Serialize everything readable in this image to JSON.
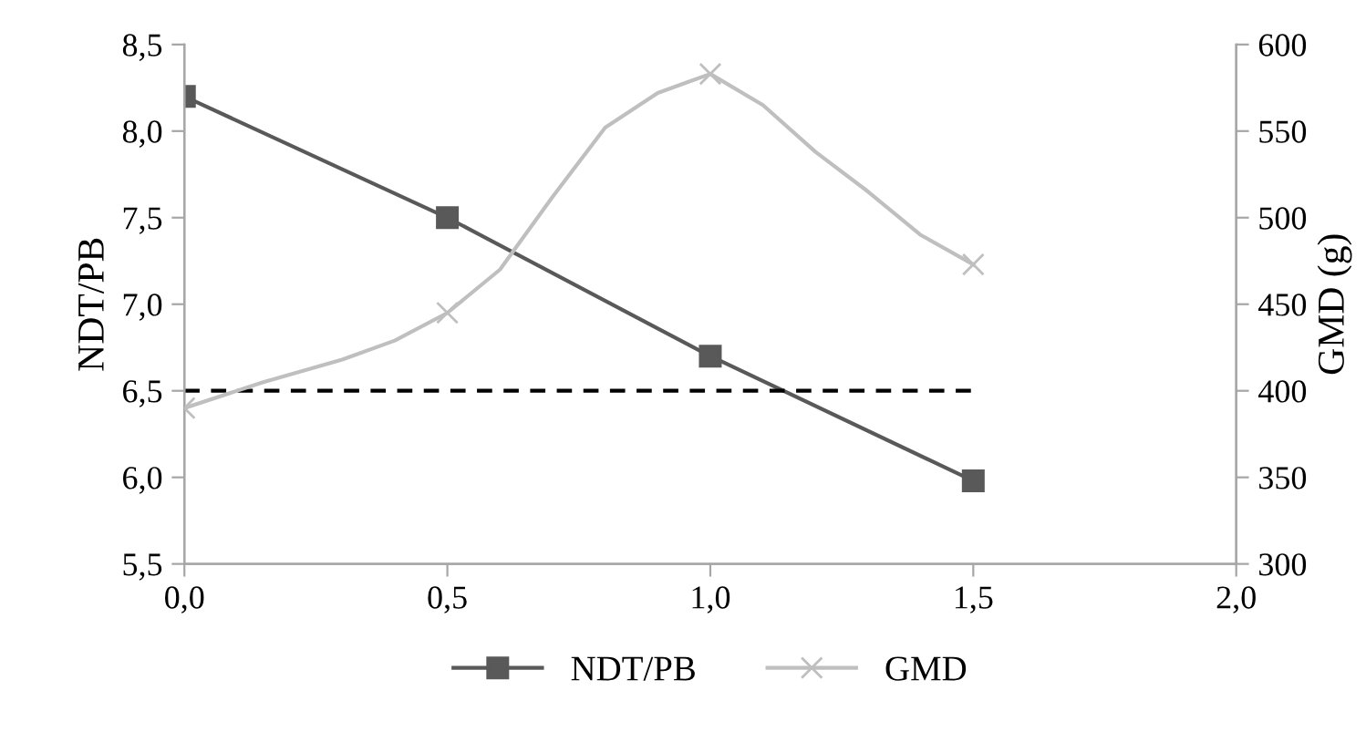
{
  "chart_data": {
    "type": "line",
    "ylabel": "NDT/PB",
    "y2label": "GMD (g)",
    "xlim": [
      0,
      2
    ],
    "xticks": [
      {
        "value": 0,
        "label": "0,0"
      },
      {
        "value": 0.5,
        "label": "0,5"
      },
      {
        "value": 1,
        "label": "1,0"
      },
      {
        "value": 1.5,
        "label": "1,5"
      },
      {
        "value": 2,
        "label": "2,0"
      }
    ],
    "ylim": [
      5.5,
      8.5
    ],
    "yticks": [
      {
        "value": 5.5,
        "label": "5,5"
      },
      {
        "value": 6,
        "label": "6,0"
      },
      {
        "value": 6.5,
        "label": "6,5"
      },
      {
        "value": 7,
        "label": "7,0"
      },
      {
        "value": 7.5,
        "label": "7,5"
      },
      {
        "value": 8,
        "label": "8,0"
      },
      {
        "value": 8.5,
        "label": "8,5"
      }
    ],
    "y2lim": [
      300,
      600
    ],
    "y2ticks": [
      300,
      350,
      400,
      450,
      500,
      550,
      600
    ],
    "grid": false,
    "legend": "bottom",
    "series": [
      {
        "name": "NDT/PB",
        "color": "#595959",
        "x": [
          0,
          0.5,
          1,
          1.5
        ],
        "values": [
          8.2,
          7.5,
          6.7,
          5.98
        ],
        "marker": "square",
        "line_style": "solid"
      },
      {
        "color": "#bfbfbf",
        "x": [
          0,
          0.15,
          0.3,
          0.4,
          0.5,
          0.6,
          0.7,
          0.8,
          0.9,
          1.0,
          1.1,
          1.2,
          1.3,
          1.4,
          1.5
        ],
        "values": [
          390,
          405,
          418,
          429,
          445,
          470,
          512,
          552,
          572,
          583,
          565,
          538,
          515,
          490,
          473
        ],
        "marker": "none",
        "line_style": "solid",
        "axis": "y2"
      },
      {
        "name": "GMD",
        "type": "scatter",
        "color": "#bfbfbf",
        "x": [
          0,
          0.5,
          1,
          1.5
        ],
        "values": [
          390,
          445,
          583,
          473
        ],
        "marker": "cross",
        "axis": "y2"
      },
      {
        "color": "#000000",
        "x": [
          0,
          1.5
        ],
        "values": [
          6.5,
          6.5
        ],
        "marker": "none",
        "line_style": "dashed"
      }
    ]
  }
}
